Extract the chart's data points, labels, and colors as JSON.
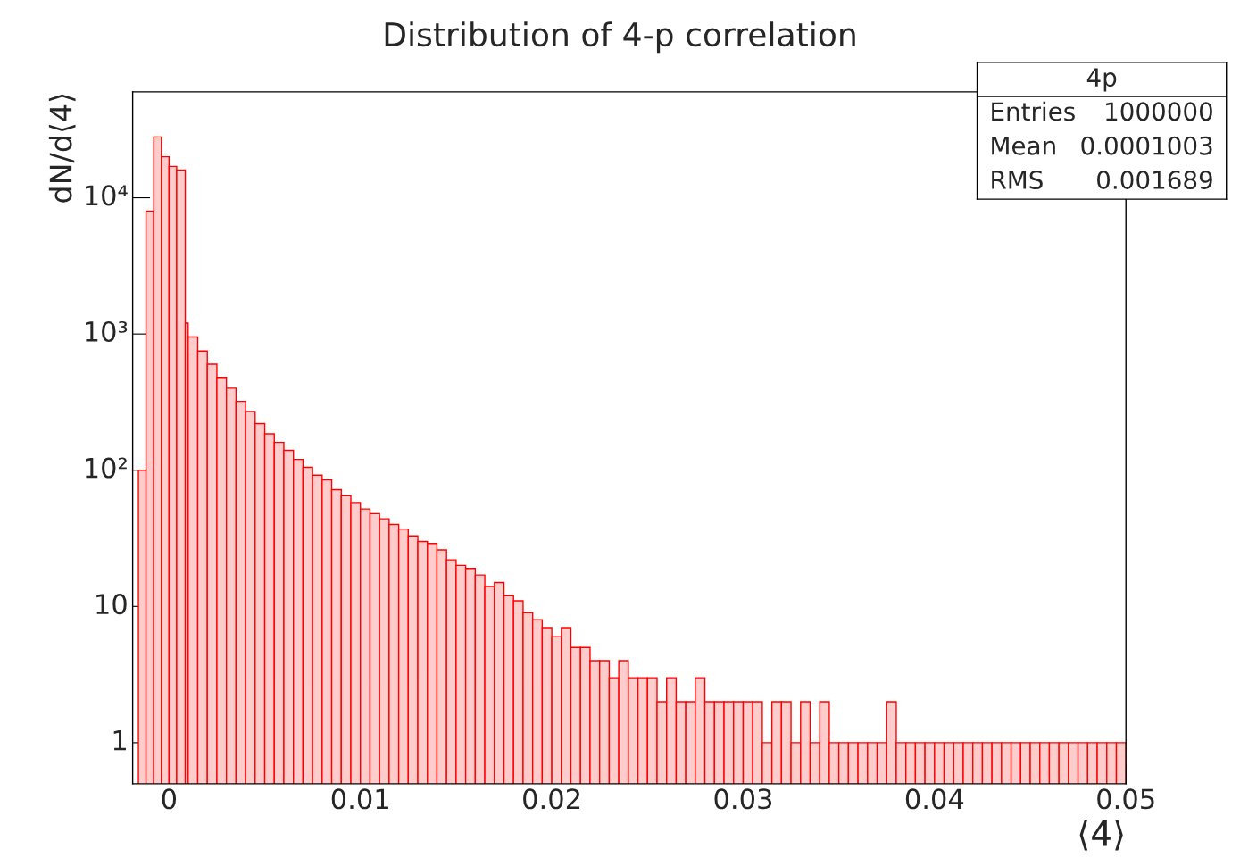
{
  "chart_data": {
    "type": "histogram",
    "title": "Distribution of 4-p correlation",
    "xlabel": "⟨4⟩",
    "ylabel": "dN/d⟨4⟩",
    "bins": [
      -0.0016,
      -0.0012,
      -0.0008,
      -0.0004,
      0,
      0.0004,
      0.00085,
      0.001,
      0.0015,
      0.002,
      0.0025,
      0.003,
      0.0035,
      0.004,
      0.0045,
      0.005,
      0.0055,
      0.006,
      0.0065,
      0.007,
      0.0075,
      0.008,
      0.0085,
      0.009,
      0.0095,
      0.01,
      0.0105,
      0.011,
      0.0115,
      0.012,
      0.0125,
      0.013,
      0.0135,
      0.014,
      0.0145,
      0.015,
      0.0155,
      0.016,
      0.0165,
      0.017,
      0.0175,
      0.018,
      0.0185,
      0.019,
      0.0195,
      0.02,
      0.0205,
      0.021,
      0.0215,
      0.022,
      0.0225,
      0.023,
      0.0235,
      0.024,
      0.0245,
      0.025,
      0.0255,
      0.026,
      0.0265,
      0.027,
      0.0275,
      0.028,
      0.0285,
      0.029,
      0.0295,
      0.03,
      0.0305,
      0.031,
      0.0315,
      0.032,
      0.0325,
      0.033,
      0.0335,
      0.034,
      0.0345,
      0.035,
      0.0355,
      0.036,
      0.0365,
      0.037,
      0.0375,
      0.038,
      0.0385,
      0.039,
      0.0395,
      0.04,
      0.0405,
      0.041,
      0.0415,
      0.042,
      0.0425,
      0.043,
      0.0435,
      0.044,
      0.0445,
      0.045,
      0.0455,
      0.046,
      0.0465,
      0.047,
      0.0475,
      0.048,
      0.0485,
      0.049,
      0.0495,
      0.05
    ],
    "values": [
      100,
      8000,
      28000,
      20000,
      17000,
      16000,
      1200,
      950,
      750,
      600,
      480,
      400,
      320,
      270,
      220,
      185,
      160,
      140,
      120,
      105,
      92,
      85,
      72,
      65,
      58,
      52,
      48,
      44,
      40,
      37,
      33,
      30,
      29,
      26,
      22,
      20,
      19,
      17,
      14,
      15,
      12,
      11,
      9,
      8,
      7,
      6,
      7,
      5,
      5,
      4,
      4,
      3,
      4,
      3,
      3,
      3,
      2,
      3,
      2,
      2,
      3,
      2,
      2,
      2,
      2,
      2,
      2,
      1,
      2,
      2,
      1,
      2,
      1,
      2,
      1,
      1,
      1,
      1,
      1,
      1,
      2,
      1,
      1,
      1,
      1,
      1,
      1,
      1,
      1,
      1,
      1,
      1,
      1,
      1,
      1,
      1,
      1,
      1,
      1,
      1,
      1,
      1,
      1,
      1,
      1
    ],
    "color": "#ff0000",
    "log": true,
    "xlim": [
      -0.0019,
      0.05
    ],
    "xticks": [
      0,
      0.01,
      0.02,
      0.03,
      0.04,
      0.05
    ],
    "ylim": [
      0.5,
      60000
    ],
    "yticks": [
      1,
      10,
      {
        "value": 100,
        "label": "10²"
      },
      {
        "value": 1000,
        "label": "10³"
      },
      {
        "value": 10000,
        "label": "10⁴"
      }
    ],
    "annotations": [
      "4p",
      "Entries",
      "1000000",
      "Mean",
      "0.0001003",
      "RMS",
      "0.001689"
    ]
  }
}
